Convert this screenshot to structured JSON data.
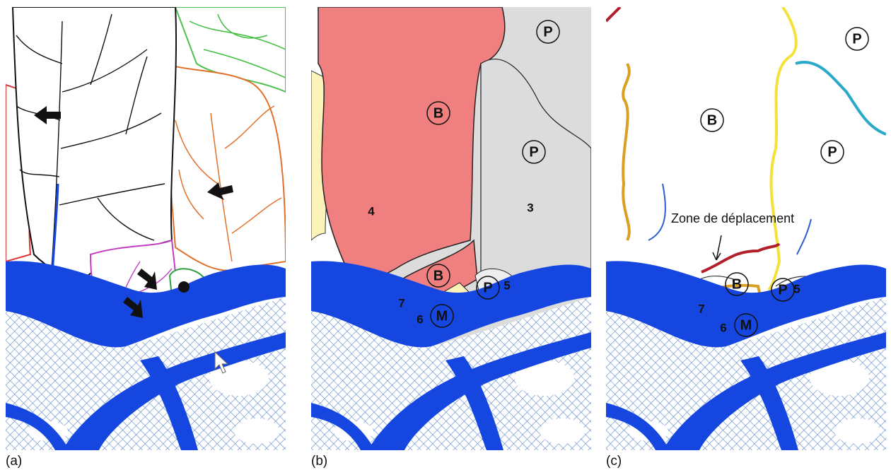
{
  "panels": [
    {
      "label": "(a)"
    },
    {
      "label": "(b)",
      "circled_labels": [
        "B",
        "P",
        "P",
        "B",
        "M",
        "P"
      ],
      "plain_labels": [
        "4",
        "3",
        "7",
        "6",
        "5"
      ]
    },
    {
      "label": "(c)",
      "circled_labels": [
        "P",
        "B",
        "P",
        "B",
        "M",
        "P"
      ],
      "plain_labels": [
        "7",
        "6",
        "5"
      ],
      "annotation": "Zone de déplacement"
    }
  ]
}
